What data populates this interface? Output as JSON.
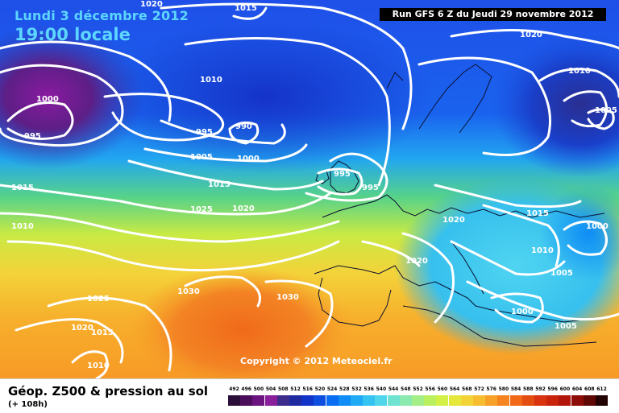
{
  "header": {
    "date": "Lundi 3 décembre 2012",
    "local_time": "19:00 locale",
    "run_info": "Run GFS 6 Z du Jeudi 29 novembre 2012"
  },
  "map": {
    "copyright": "Copyright © 2012 Meteociel.fr",
    "isobar_labels": [
      "1020",
      "1015",
      "1020",
      "1010",
      "1000",
      "995",
      "995",
      "990",
      "1005",
      "1000",
      "995",
      "995",
      "1015",
      "1010",
      "1015",
      "1025",
      "1020",
      "1020",
      "1020",
      "1015",
      "1010",
      "1005",
      "1000",
      "1030",
      "1030",
      "1025",
      "1020",
      "1015",
      "1010",
      "1000",
      "1005",
      "1010",
      "1005"
    ]
  },
  "footer": {
    "title": "Géop. Z500 & pression au sol",
    "subtitle": "(+ 108h)"
  },
  "legend": {
    "ticks": [
      "492",
      "496",
      "500",
      "504",
      "508",
      "512",
      "516",
      "520",
      "524",
      "528",
      "532",
      "536",
      "540",
      "544",
      "548",
      "552",
      "556",
      "560",
      "564",
      "568",
      "572",
      "576",
      "580",
      "584",
      "588",
      "592",
      "596",
      "600",
      "604",
      "608",
      "612"
    ],
    "colors": [
      "#2b0f3a",
      "#4c0d5a",
      "#6b1480",
      "#8a1f9c",
      "#3d2c8c",
      "#1f2aa0",
      "#1233c8",
      "#0d4ee0",
      "#0a6cf2",
      "#0f8cf5",
      "#20aaf5",
      "#35c3f2",
      "#50d6ea",
      "#6fe2d2",
      "#8ae9ae",
      "#a3ee86",
      "#baf060",
      "#d2f046",
      "#e6e73b",
      "#f2d437",
      "#f7bd30",
      "#f7a028",
      "#f58320",
      "#f06818",
      "#e34d12",
      "#d8330e",
      "#c9230c",
      "#b2150a",
      "#8e0c08",
      "#5e0705",
      "#220202"
    ]
  }
}
